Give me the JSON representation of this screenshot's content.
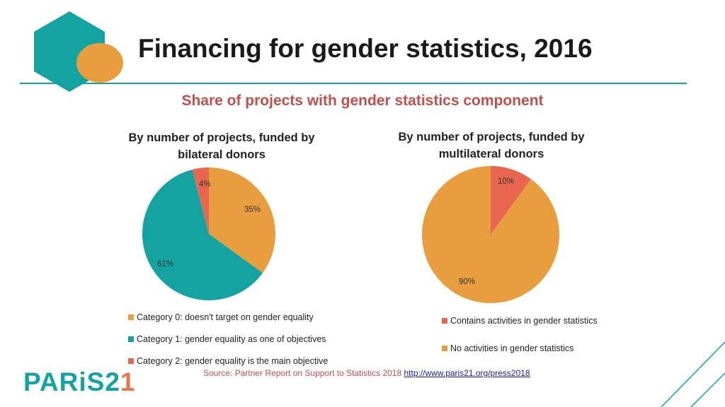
{
  "title": "Financing for gender statistics, 2016",
  "subtitle": "Share of projects with gender statistics component",
  "logo": {
    "name": "PARiS21",
    "text_main": "PARiS2",
    "text_accent": "1"
  },
  "colors": {
    "teal": "#13a3a0",
    "orange": "#e99e3e",
    "red": "#e86650",
    "subtitle": "#c0504d"
  },
  "source": {
    "text": "Source: Partner Report on Support to Statistics 2018",
    "link": "http://www.paris21.org/press2018"
  },
  "chart_data": [
    {
      "type": "pie",
      "title": "By number of projects, funded by bilateral donors",
      "slices": [
        {
          "label": "Category 0: doesn't target on gender equality",
          "value": 35,
          "display": "35%",
          "color": "#e99e3e"
        },
        {
          "label": "Category 1: gender equality as one of objectives",
          "value": 61,
          "display": "61%",
          "color": "#13a3a0"
        },
        {
          "label": "Category 2: gender equality is the main objective",
          "value": 4,
          "display": "4%",
          "color": "#e86650"
        }
      ],
      "legend_position": "bottom"
    },
    {
      "type": "pie",
      "title": "By number of projects, funded by multilateral donors",
      "slices": [
        {
          "label": "Contains activities in gender statistics",
          "value": 10,
          "display": "10%",
          "color": "#e86650"
        },
        {
          "label": "No activities in gender statistics",
          "value": 90,
          "display": "90%",
          "color": "#e99e3e"
        }
      ],
      "legend_position": "bottom"
    }
  ]
}
